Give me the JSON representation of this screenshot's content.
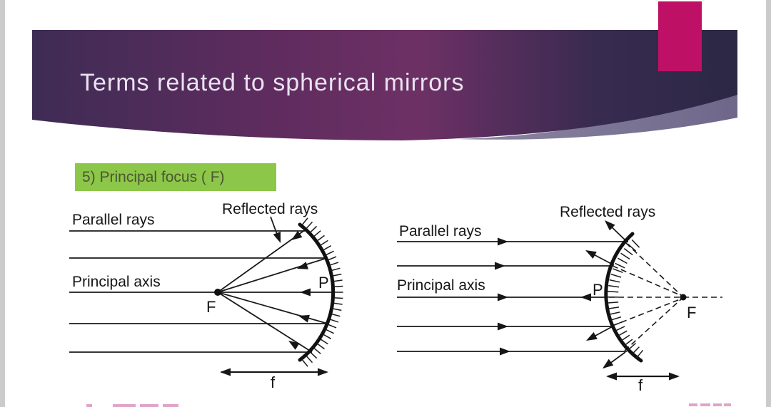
{
  "slide": {
    "title": "Terms related to spherical mirrors",
    "badge": "5) Principal focus ( F)",
    "colors": {
      "banner_left": "#3e2c55",
      "banner_mid": "#6d3065",
      "banner_right": "#2c2845",
      "banner_swoosh": "#746d8c",
      "accent_pink": "#be1165",
      "badge_green": "#8dc74a",
      "badge_text": "#4b5632",
      "diagram_ink": "#1a1a1a"
    }
  },
  "left_diagram": {
    "type": "concave-mirror-ray-diagram",
    "labels": {
      "parallel_rays": "Parallel rays",
      "reflected_rays": "Reflected rays",
      "principal_axis": "Principal axis",
      "pole": "P",
      "focus": "F",
      "focal_length": "f"
    }
  },
  "right_diagram": {
    "type": "convex-mirror-ray-diagram",
    "labels": {
      "parallel_rays": "Parallel rays",
      "reflected_rays": "Reflected rays",
      "principal_axis": "Principal axis",
      "pole": "P",
      "focus": "F",
      "focal_length": "f"
    }
  }
}
